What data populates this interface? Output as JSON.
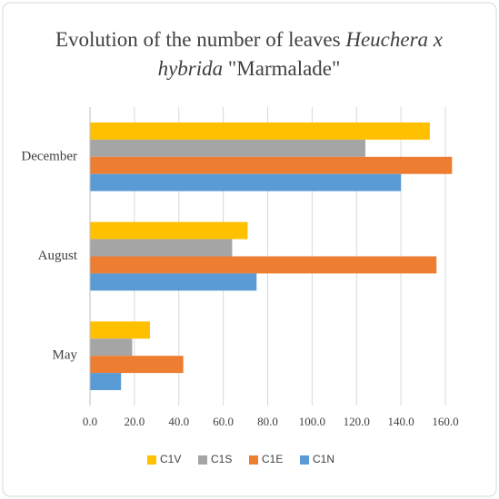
{
  "chart_data": {
    "type": "hbar",
    "title_parts": [
      "Evolution of the number of leaves",
      "Heuchera x",
      "hybrida",
      "\"Marmalade\""
    ],
    "categories": [
      "May",
      "August",
      "December"
    ],
    "series": [
      {
        "name": "C1V",
        "color": "#ffc000",
        "values": [
          27,
          71,
          153
        ]
      },
      {
        "name": "C1S",
        "color": "#a5a5a5",
        "values": [
          19,
          64,
          124
        ]
      },
      {
        "name": "C1E",
        "color": "#ed7d31",
        "values": [
          42,
          156,
          163
        ]
      },
      {
        "name": "C1N",
        "color": "#5b9bd5",
        "values": [
          14,
          75,
          140
        ]
      }
    ],
    "xlim": [
      0,
      160
    ],
    "xticks": [
      {
        "value": 0,
        "label": "0.0"
      },
      {
        "value": 20,
        "label": "20.0"
      },
      {
        "value": 40,
        "label": "40.0"
      },
      {
        "value": 60,
        "label": "60.0"
      },
      {
        "value": 80,
        "label": "80.0"
      },
      {
        "value": 100,
        "label": "100.0"
      },
      {
        "value": 120,
        "label": "120.0"
      },
      {
        "value": 140,
        "label": "140.0"
      },
      {
        "value": 160,
        "label": "160.0"
      }
    ],
    "grid": true,
    "legend": "bottom"
  }
}
